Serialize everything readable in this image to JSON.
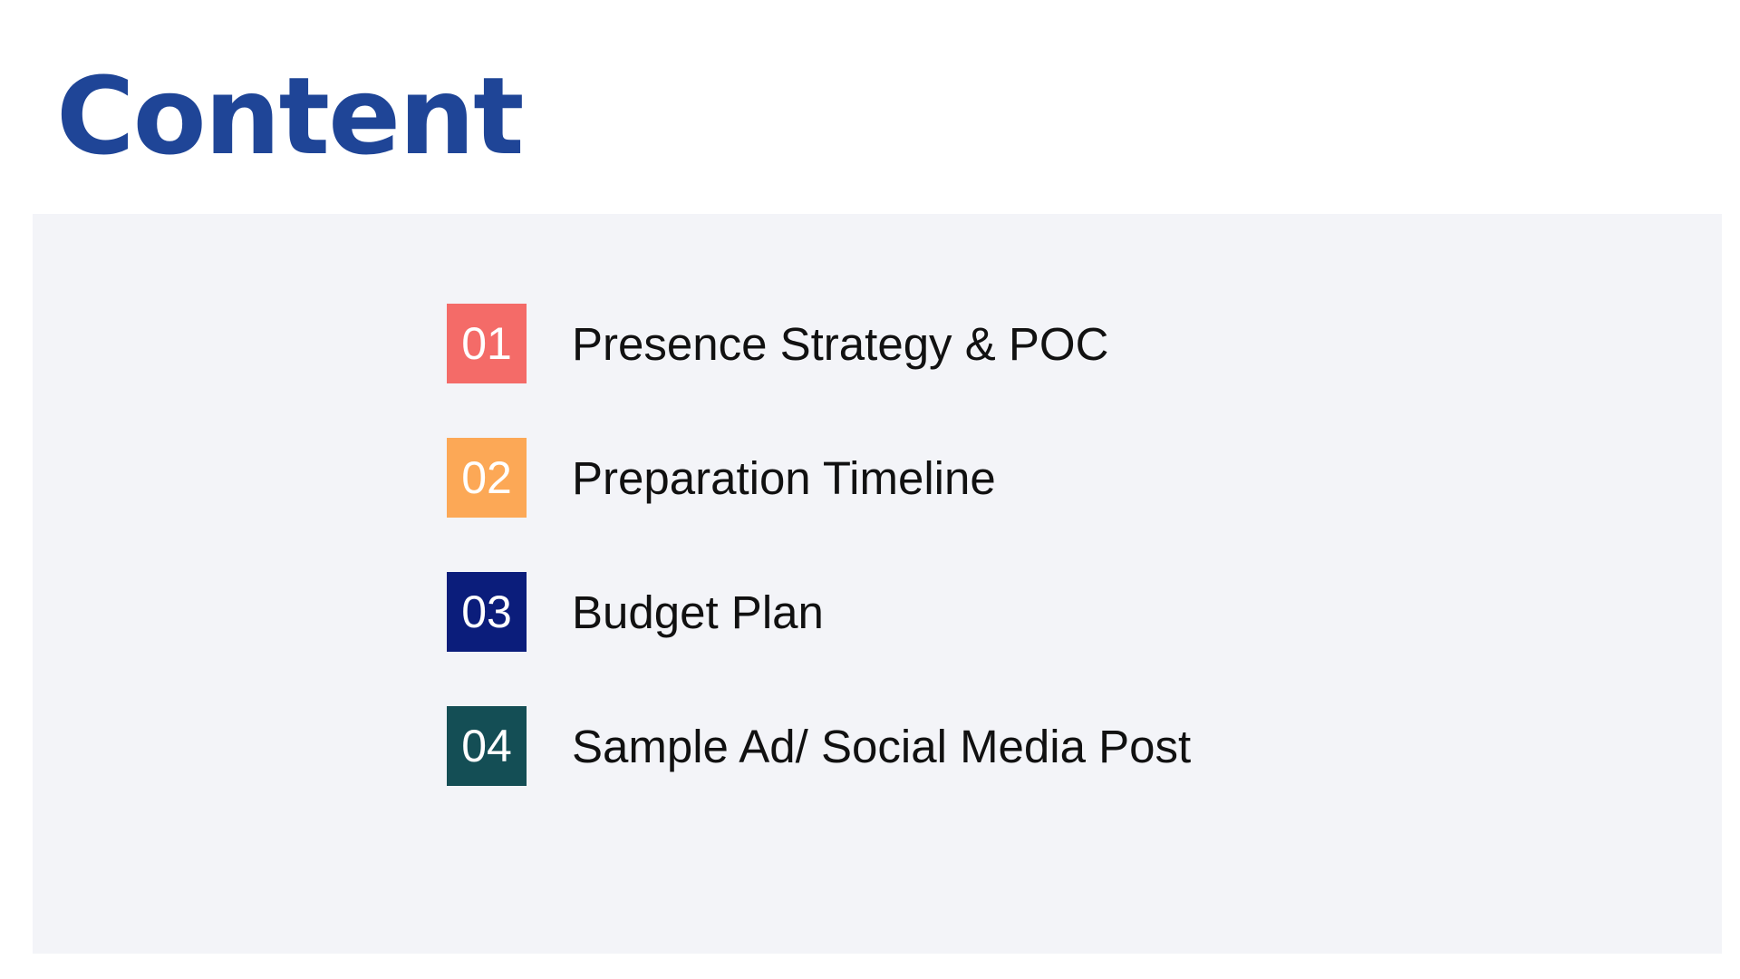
{
  "title": "Content",
  "items": [
    {
      "number": "01",
      "label": "Presence Strategy & POC",
      "color": "#f46b68"
    },
    {
      "number": "02",
      "label": "Preparation Timeline",
      "color": "#fca856"
    },
    {
      "number": "03",
      "label": "Budget Plan",
      "color": "#0b1d7b"
    },
    {
      "number": "04",
      "label": "Sample Ad/ Social Media Post",
      "color": "#144e55"
    }
  ],
  "colors": {
    "title": "#1f4597",
    "panel_background": "#f3f4f8",
    "page_background": "#ffffff",
    "label_text": "#111111"
  }
}
